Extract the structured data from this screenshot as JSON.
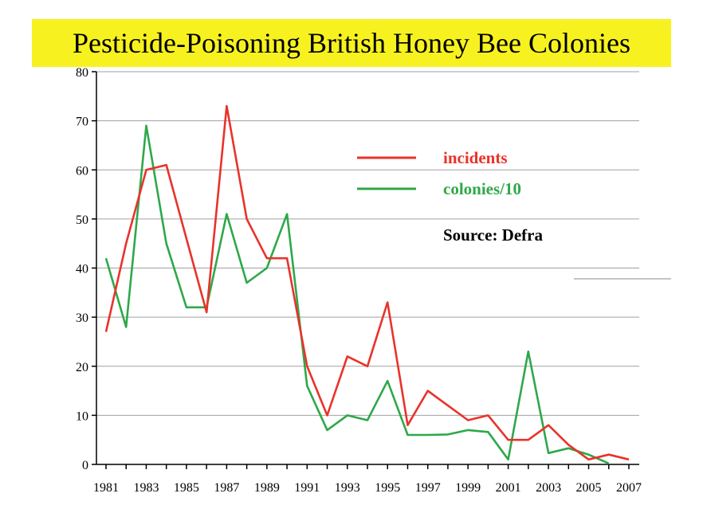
{
  "chart_data": {
    "type": "line",
    "title": "Pesticide-Poisoning British Honey Bee Colonies",
    "annotation": "Source: Defra",
    "xlim": [
      1981,
      2007
    ],
    "ylim": [
      0,
      80
    ],
    "yticks": [
      0,
      10,
      20,
      30,
      40,
      50,
      60,
      70,
      80
    ],
    "xtick_labels": [
      "1981",
      "1983",
      "1985",
      "1987",
      "1989",
      "1991",
      "1993",
      "1995",
      "1997",
      "1999",
      "2001",
      "2003",
      "2005",
      "2007"
    ],
    "grid": true,
    "legend_position": "top-right",
    "x": [
      1981,
      1982,
      1983,
      1984,
      1985,
      1986,
      1987,
      1988,
      1989,
      1990,
      1991,
      1992,
      1993,
      1994,
      1995,
      1996,
      1997,
      1998,
      1999,
      2000,
      2001,
      2002,
      2003,
      2004,
      2005,
      2006,
      2007
    ],
    "series": [
      {
        "name": "incidents",
        "color": "#e8332a",
        "values": [
          27,
          45,
          60,
          61,
          46,
          31,
          73,
          50,
          42,
          42,
          20,
          10,
          22,
          20,
          33,
          8,
          15,
          12,
          9,
          10,
          5,
          5,
          8,
          4,
          1,
          2,
          1
        ]
      },
      {
        "name": "colonies/10",
        "color": "#2ea84a",
        "values": [
          42,
          28,
          69,
          45,
          32,
          32,
          51,
          37,
          40,
          51,
          16,
          7,
          10,
          9,
          17,
          6,
          6,
          6.1,
          7,
          6.6,
          1,
          23,
          2.3,
          3.3,
          2,
          0.2,
          null
        ]
      }
    ]
  }
}
